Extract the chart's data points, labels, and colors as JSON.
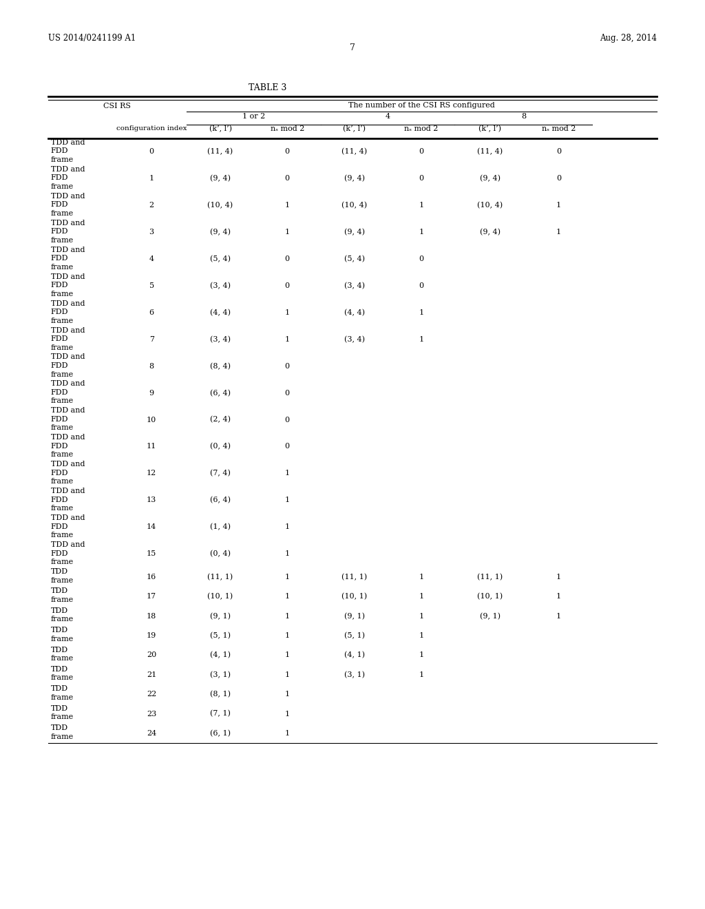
{
  "title": "TABLE 3",
  "page_number": "7",
  "patent_left": "US 2014/0241199 A1",
  "patent_right": "Aug. 28, 2014",
  "header_main": "The number of the CSI RS configured",
  "col_groups": [
    "1 or 2",
    "4",
    "8"
  ],
  "rows": [
    [
      "TDD and",
      "FDD",
      "frame",
      "0",
      "(11, 4)",
      "0",
      "(11, 4)",
      "0",
      "(11, 4)",
      "0"
    ],
    [
      "TDD and",
      "FDD",
      "frame",
      "1",
      "(9, 4)",
      "0",
      "(9, 4)",
      "0",
      "(9, 4)",
      "0"
    ],
    [
      "TDD and",
      "FDD",
      "frame",
      "2",
      "(10, 4)",
      "1",
      "(10, 4)",
      "1",
      "(10, 4)",
      "1"
    ],
    [
      "TDD and",
      "FDD",
      "frame",
      "3",
      "(9, 4)",
      "1",
      "(9, 4)",
      "1",
      "(9, 4)",
      "1"
    ],
    [
      "TDD and",
      "FDD",
      "frame",
      "4",
      "(5, 4)",
      "0",
      "(5, 4)",
      "0",
      "",
      ""
    ],
    [
      "TDD and",
      "FDD",
      "frame",
      "5",
      "(3, 4)",
      "0",
      "(3, 4)",
      "0",
      "",
      ""
    ],
    [
      "TDD and",
      "FDD",
      "frame",
      "6",
      "(4, 4)",
      "1",
      "(4, 4)",
      "1",
      "",
      ""
    ],
    [
      "TDD and",
      "FDD",
      "frame",
      "7",
      "(3, 4)",
      "1",
      "(3, 4)",
      "1",
      "",
      ""
    ],
    [
      "TDD and",
      "FDD",
      "frame",
      "8",
      "(8, 4)",
      "0",
      "",
      "",
      "",
      ""
    ],
    [
      "TDD and",
      "FDD",
      "frame",
      "9",
      "(6, 4)",
      "0",
      "",
      "",
      "",
      ""
    ],
    [
      "TDD and",
      "FDD",
      "frame",
      "10",
      "(2, 4)",
      "0",
      "",
      "",
      "",
      ""
    ],
    [
      "TDD and",
      "FDD",
      "frame",
      "11",
      "(0, 4)",
      "0",
      "",
      "",
      "",
      ""
    ],
    [
      "TDD and",
      "FDD",
      "frame",
      "12",
      "(7, 4)",
      "1",
      "",
      "",
      "",
      ""
    ],
    [
      "TDD and",
      "FDD",
      "frame",
      "13",
      "(6, 4)",
      "1",
      "",
      "",
      "",
      ""
    ],
    [
      "TDD and",
      "FDD",
      "frame",
      "14",
      "(1, 4)",
      "1",
      "",
      "",
      "",
      ""
    ],
    [
      "TDD and",
      "FDD",
      "frame",
      "15",
      "(0, 4)",
      "1",
      "",
      "",
      "",
      ""
    ],
    [
      "TDD",
      "frame",
      "",
      "16",
      "(11, 1)",
      "1",
      "(11, 1)",
      "1",
      "(11, 1)",
      "1"
    ],
    [
      "TDD",
      "frame",
      "",
      "17",
      "(10, 1)",
      "1",
      "(10, 1)",
      "1",
      "(10, 1)",
      "1"
    ],
    [
      "TDD",
      "frame",
      "",
      "18",
      "(9, 1)",
      "1",
      "(9, 1)",
      "1",
      "(9, 1)",
      "1"
    ],
    [
      "TDD",
      "frame",
      "",
      "19",
      "(5, 1)",
      "1",
      "(5, 1)",
      "1",
      "",
      ""
    ],
    [
      "TDD",
      "frame",
      "",
      "20",
      "(4, 1)",
      "1",
      "(4, 1)",
      "1",
      "",
      ""
    ],
    [
      "TDD",
      "frame",
      "",
      "21",
      "(3, 1)",
      "1",
      "(3, 1)",
      "1",
      "",
      ""
    ],
    [
      "TDD",
      "frame",
      "",
      "22",
      "(8, 1)",
      "1",
      "",
      "",
      "",
      ""
    ],
    [
      "TDD",
      "frame",
      "",
      "23",
      "(7, 1)",
      "1",
      "",
      "",
      "",
      ""
    ],
    [
      "TDD",
      "frame",
      "",
      "24",
      "(6, 1)",
      "1",
      "",
      "",
      "",
      ""
    ]
  ],
  "background_color": "#ffffff",
  "text_color": "#000000"
}
